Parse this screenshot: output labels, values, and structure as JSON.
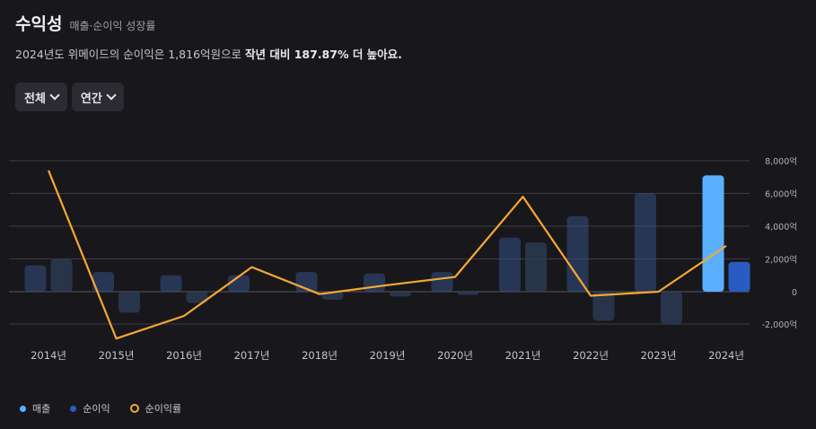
{
  "header": {
    "title": "수익성",
    "subtitle": "매출·순이익 성장률"
  },
  "summary": {
    "prefix": "2024년도 위메이드의 순이익은 1,816억원으로 ",
    "highlight": "작년 대비 187.87% 더 높아요."
  },
  "filters": {
    "scope_label": "전체",
    "period_label": "연간"
  },
  "legend": {
    "revenue": "매출",
    "net_income": "순이익",
    "net_income_growth": "순이익률"
  },
  "colors": {
    "revenue": "#3a5a9a",
    "revenue_highlight": "#5ab0ff",
    "net_income": "#2e3d5a",
    "net_income_highlight": "#2a5bc0",
    "growth_line": "#f7a832",
    "grid": "#3b3b42"
  },
  "chart_data": {
    "type": "bar",
    "title": "수익성",
    "categories": [
      "2014년",
      "2015년",
      "2016년",
      "2017년",
      "2018년",
      "2019년",
      "2020년",
      "2021년",
      "2022년",
      "2023년",
      "2024년"
    ],
    "series": [
      {
        "name": "매출",
        "values": [
          1600,
          1200,
          1000,
          1000,
          1200,
          1100,
          1200,
          3300,
          4600,
          6000,
          7100
        ]
      },
      {
        "name": "순이익",
        "values": [
          2000,
          -1300,
          -700,
          0,
          -500,
          -300,
          -200,
          3000,
          -1800,
          -2000,
          1816
        ]
      },
      {
        "name": "순이익률",
        "type": "line",
        "values": [
          7400,
          -2900,
          -1500,
          1500,
          -150,
          400,
          900,
          5800,
          -250,
          0,
          2800
        ]
      }
    ],
    "y_ticks": [
      "8,000억",
      "6,000억",
      "4,000억",
      "2,000억",
      "0",
      "-2,000억"
    ],
    "y_tick_values": [
      8000,
      6000,
      4000,
      2000,
      0,
      -2000
    ],
    "ylim": [
      -2000,
      8000
    ],
    "highlight_category": "2024년",
    "grid": true,
    "legend_position": "bottom-left"
  }
}
